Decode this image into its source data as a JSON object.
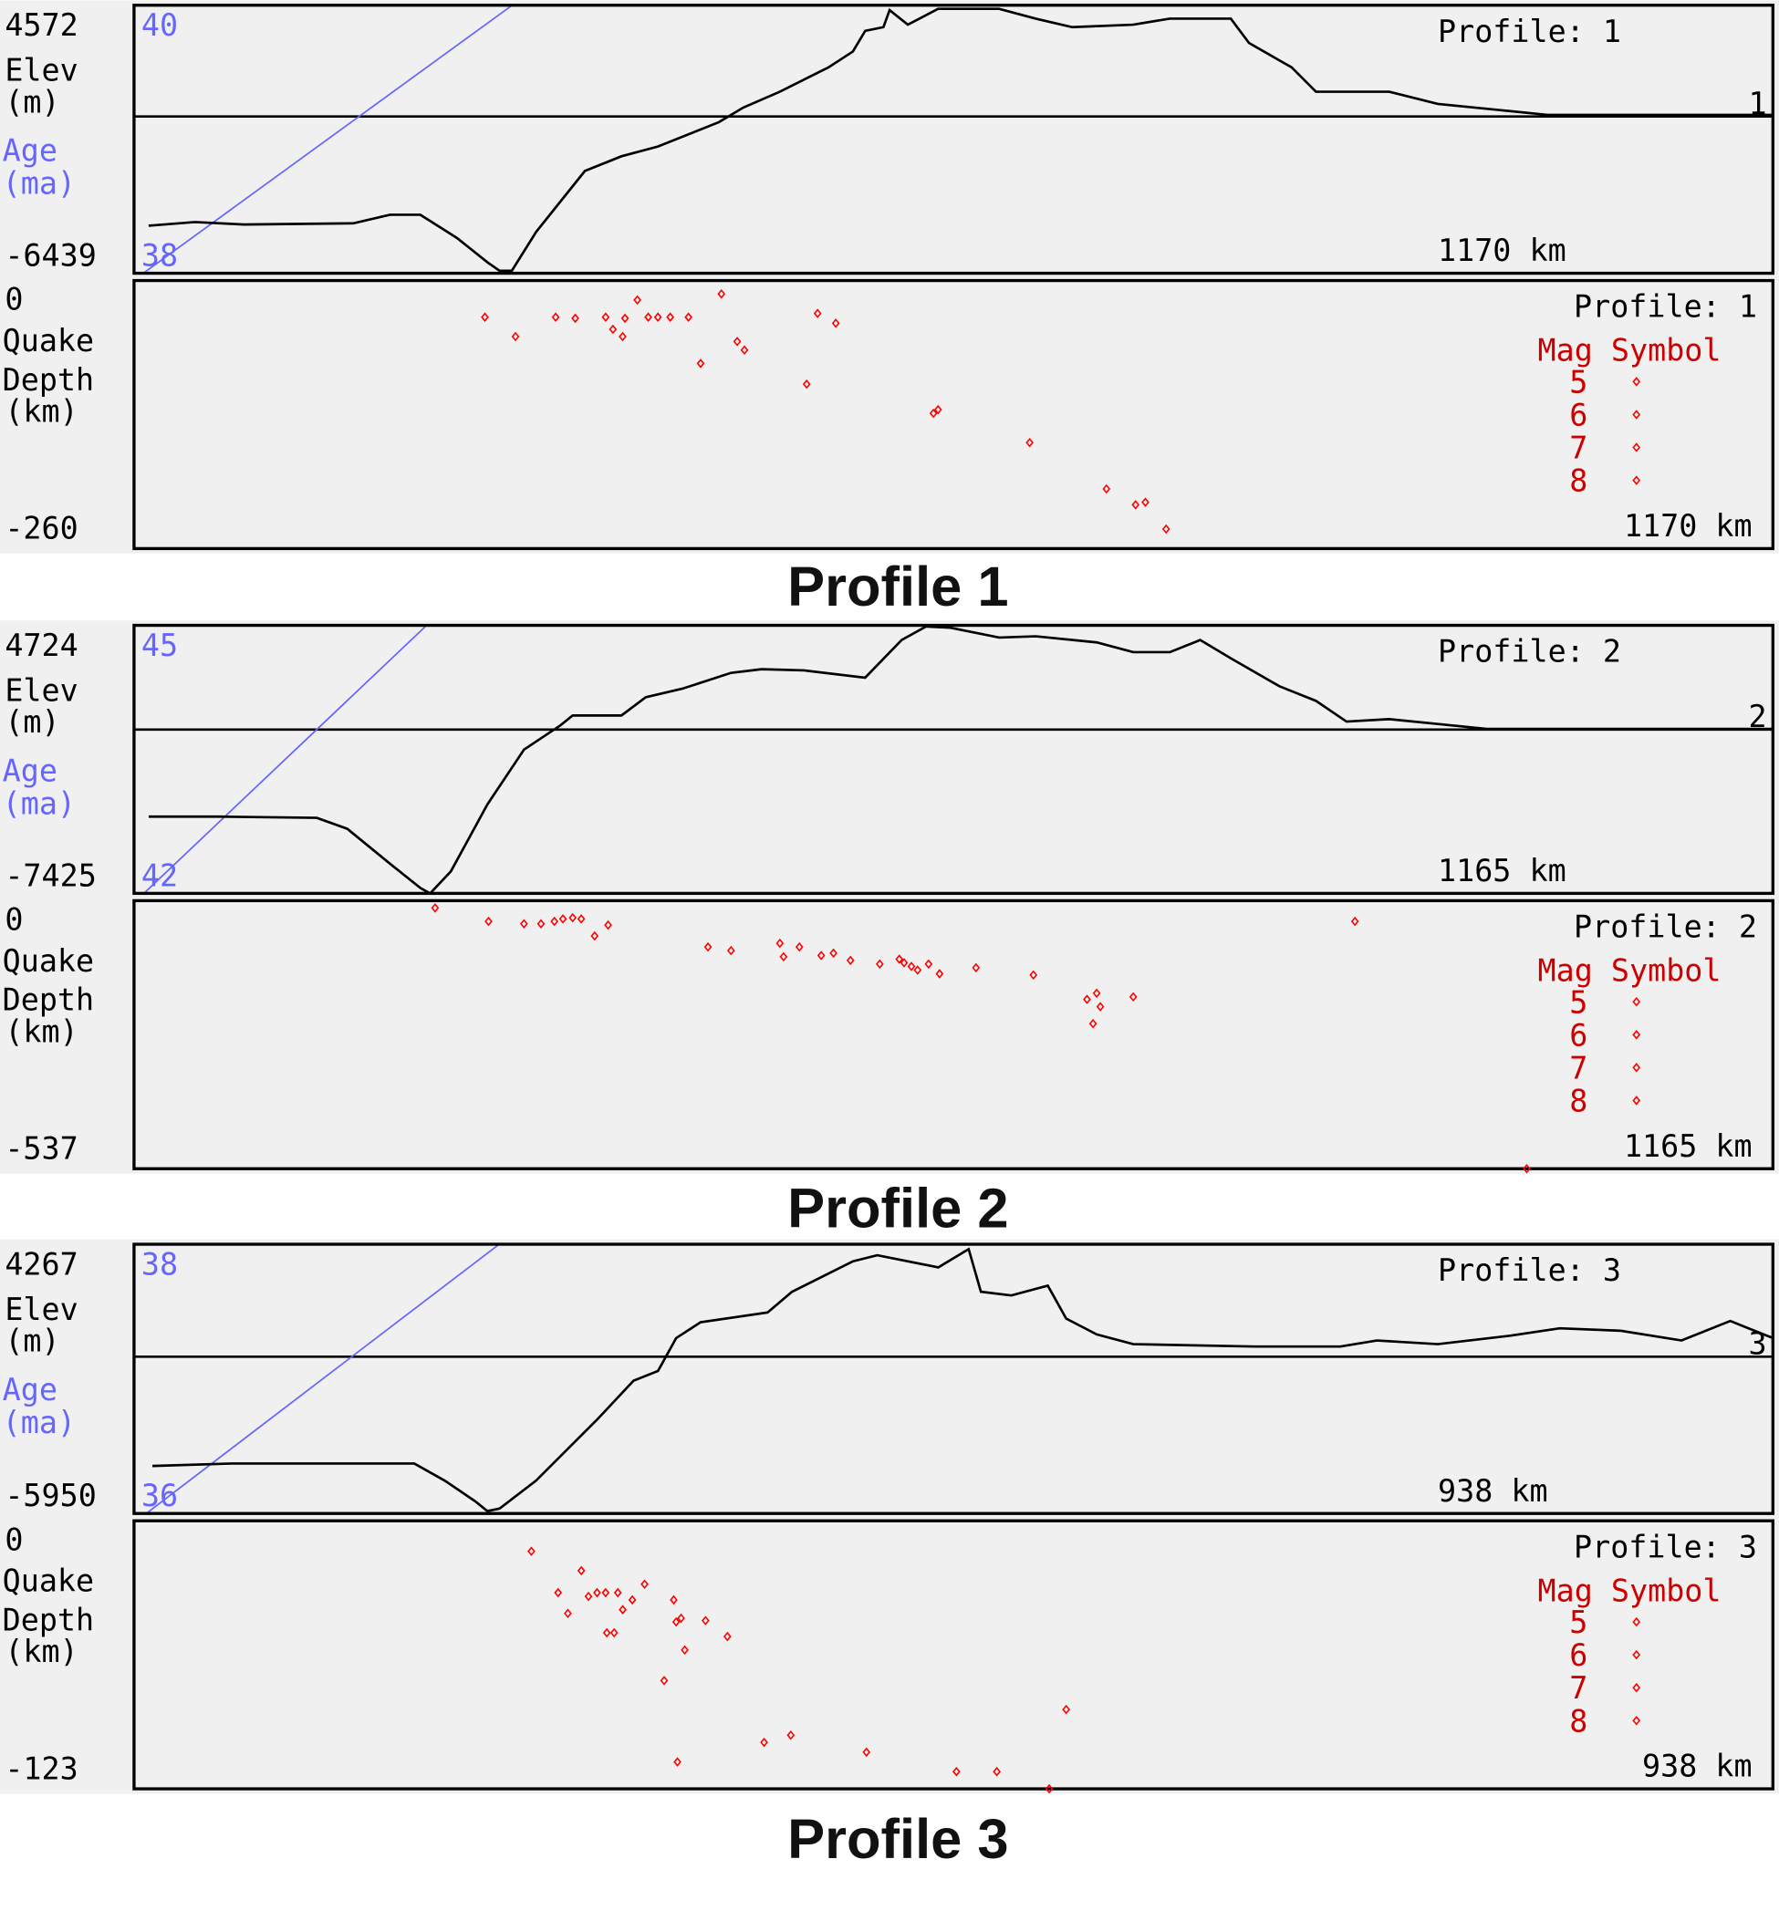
{
  "colors": {
    "background": "#f0f0f0",
    "elevation": "#000000",
    "age": "#6666ff",
    "quake": "#ff0000",
    "legend": "#cc0000"
  },
  "chart_data": [
    {
      "type": "line+scatter",
      "title": "Profile 1",
      "profile_label": "Profile: 1",
      "profile_number": "1",
      "distance_label": "1170 km",
      "distance_km": 1170,
      "elevation": {
        "ylabel": [
          "Elev",
          "(m)"
        ],
        "ylim": [
          -6439,
          4572
        ],
        "tick_labels": [
          "4572",
          "-6439"
        ],
        "points": [
          [
            10.4,
            -4487
          ],
          [
            43.5,
            -4337
          ],
          [
            78.3,
            -4437
          ],
          [
            156.6,
            -4387
          ],
          [
            182.7,
            -4037
          ],
          [
            204.4,
            -4037
          ],
          [
            230.5,
            -4988
          ],
          [
            252.3,
            -5989
          ],
          [
            261,
            -6339
          ],
          [
            269.7,
            -6339
          ],
          [
            287.1,
            -4737
          ],
          [
            321.9,
            -2235
          ],
          [
            348,
            -1634
          ],
          [
            374,
            -1234
          ],
          [
            417.5,
            -233
          ],
          [
            435,
            368
          ],
          [
            461,
            1018
          ],
          [
            478.4,
            1519
          ],
          [
            495.8,
            2019
          ],
          [
            513.2,
            2670
          ],
          [
            522,
            3521
          ],
          [
            535,
            3671
          ],
          [
            539.4,
            4372
          ],
          [
            552.4,
            3771
          ],
          [
            574,
            4422
          ],
          [
            617.6,
            4422
          ],
          [
            643.7,
            4021
          ],
          [
            669.8,
            3671
          ],
          [
            713.3,
            3771
          ],
          [
            739.4,
            4021
          ],
          [
            783,
            4021
          ],
          [
            796,
            3020
          ],
          [
            826.4,
            2019
          ],
          [
            843.8,
            1018
          ],
          [
            896,
            1018
          ],
          [
            930.8,
            518
          ],
          [
            974.3,
            268
          ],
          [
            1009,
            68
          ],
          [
            1170,
            68
          ]
        ]
      },
      "age": {
        "ylabel": [
          "Age",
          "(ma)"
        ],
        "ylim": [
          38,
          40
        ],
        "tick_labels": [
          "40",
          "38"
        ],
        "points": [
          [
            0,
            37.95
          ],
          [
            270,
            40
          ]
        ]
      },
      "quakes": {
        "ylabel": [
          "Quake",
          "Depth",
          "(km)"
        ],
        "ylim": [
          -260,
          0
        ],
        "tick_labels": [
          "0",
          "-260"
        ],
        "points": [
          [
            250.5,
            -35.5
          ],
          [
            272.3,
            -54.4
          ],
          [
            301,
            -35.5
          ],
          [
            315,
            -36.6
          ],
          [
            336.7,
            -35.5
          ],
          [
            341.9,
            -47.3
          ],
          [
            348.8,
            -54.4
          ],
          [
            350.5,
            -36.6
          ],
          [
            359.3,
            -18.9
          ],
          [
            367.1,
            -35.5
          ],
          [
            374,
            -35.5
          ],
          [
            382.8,
            -35.5
          ],
          [
            395.8,
            -35.5
          ],
          [
            404.5,
            -80.4
          ],
          [
            419.3,
            -13
          ],
          [
            430.6,
            -59.1
          ],
          [
            435.8,
            -67.4
          ],
          [
            480.2,
            -100.5
          ],
          [
            488,
            -31.9
          ],
          [
            501,
            -41.4
          ],
          [
            570.7,
            -128.8
          ],
          [
            574,
            -125.3
          ],
          [
            639.4,
            -157.2
          ],
          [
            694.2,
            -202.1
          ],
          [
            715,
            -217.5
          ],
          [
            722,
            -215.1
          ],
          [
            736.8,
            -241.1
          ]
        ]
      },
      "legend": {
        "title": "Mag Symbol",
        "mags": [
          "5",
          "6",
          "7",
          "8"
        ]
      }
    },
    {
      "type": "line+scatter",
      "title": "Profile 2",
      "profile_label": "Profile: 2",
      "profile_number": "2",
      "distance_label": "1165 km",
      "distance_km": 1165,
      "elevation": {
        "ylabel": [
          "Elev",
          "(m)"
        ],
        "ylim": [
          -7425,
          4724
        ],
        "tick_labels": [
          "4724",
          "-7425"
        ],
        "points": [
          [
            10.4,
            -3946
          ],
          [
            60.6,
            -3946
          ],
          [
            129.9,
            -4001
          ],
          [
            151.6,
            -4498
          ],
          [
            181.9,
            -6078
          ],
          [
            203.6,
            -7183
          ],
          [
            210.5,
            -7425
          ],
          [
            225.2,
            -6430
          ],
          [
            251.2,
            -3393
          ],
          [
            277.2,
            -909
          ],
          [
            303.2,
            196
          ],
          [
            311.8,
            638
          ],
          [
            346.5,
            638
          ],
          [
            363.8,
            1466
          ],
          [
            389.8,
            1853
          ],
          [
            424.4,
            2570
          ],
          [
            446.1,
            2736
          ],
          [
            476.4,
            2681
          ],
          [
            519.7,
            2350
          ],
          [
            545.7,
            4061
          ],
          [
            563,
            4669
          ],
          [
            580.4,
            4614
          ],
          [
            615,
            4172
          ],
          [
            641,
            4227
          ],
          [
            684.3,
            3951
          ],
          [
            710.3,
            3509
          ],
          [
            736.3,
            3509
          ],
          [
            757.9,
            4061
          ],
          [
            779.6,
            3233
          ],
          [
            814.2,
            1963
          ],
          [
            840.2,
            1300
          ],
          [
            861.9,
            362
          ],
          [
            892.2,
            472
          ],
          [
            926.8,
            251
          ],
          [
            961.5,
            30
          ],
          [
            1165,
            30
          ]
        ]
      },
      "age": {
        "ylabel": [
          "Age",
          "(ma)"
        ],
        "ylim": [
          42,
          45
        ],
        "tick_labels": [
          "45",
          "42"
        ],
        "points": [
          [
            7,
            42
          ],
          [
            208,
            45
          ]
        ]
      },
      "quakes": {
        "ylabel": [
          "Quake",
          "Depth",
          "(km)"
        ],
        "ylim": [
          -537,
          0
        ],
        "tick_labels": [
          "0",
          "-537"
        ],
        "points": [
          [
            214,
            -14.6
          ],
          [
            252,
            -41.5
          ],
          [
            277.2,
            -46.4
          ],
          [
            289.3,
            -46.4
          ],
          [
            298.8,
            -41.5
          ],
          [
            304.9,
            -36.6
          ],
          [
            311.8,
            -34.2
          ],
          [
            317.9,
            -36.6
          ],
          [
            327.4,
            -70.8
          ],
          [
            337,
            -48.8
          ],
          [
            408,
            -92.8
          ],
          [
            424.4,
            -100.1
          ],
          [
            459.1,
            -85.4
          ],
          [
            461.7,
            -112.3
          ],
          [
            473,
            -92.8
          ],
          [
            488.5,
            -109.8
          ],
          [
            497.2,
            -105
          ],
          [
            509.3,
            -119.6
          ],
          [
            530.1,
            -126.9
          ],
          [
            544,
            -117.2
          ],
          [
            547.4,
            -124.5
          ],
          [
            552.6,
            -131.8
          ],
          [
            557,
            -139.1
          ],
          [
            564.8,
            -126.9
          ],
          [
            572.6,
            -146.5
          ],
          [
            598.5,
            -134.3
          ],
          [
            639.3,
            -148.9
          ],
          [
            677.4,
            -197.7
          ],
          [
            684.3,
            -185.5
          ],
          [
            686.9,
            -212.4
          ],
          [
            681.7,
            -246.5
          ],
          [
            710.3,
            -192.8
          ],
          [
            867.9,
            -41.5
          ],
          [
            990,
            -537
          ]
        ]
      },
      "legend": {
        "title": "Mag Symbol",
        "mags": [
          "5",
          "6",
          "7",
          "8"
        ]
      }
    },
    {
      "type": "line+scatter",
      "title": "Profile 3",
      "profile_label": "Profile: 3",
      "profile_number": "3",
      "distance_label": "938 km",
      "distance_km": 938,
      "elevation": {
        "ylabel": [
          "Elev",
          "(m)"
        ],
        "ylim": [
          -5950,
          4267
        ],
        "tick_labels": [
          "4267",
          "-5950"
        ],
        "points": [
          [
            10.5,
            -4147
          ],
          [
            55.8,
            -4054
          ],
          [
            160.4,
            -4054
          ],
          [
            177.8,
            -4702
          ],
          [
            195.3,
            -5488
          ],
          [
            202.2,
            -5857
          ],
          [
            209.2,
            -5765
          ],
          [
            230.1,
            -4702
          ],
          [
            265,
            -2390
          ],
          [
            285.9,
            -911
          ],
          [
            299.9,
            -541
          ],
          [
            310.3,
            707
          ],
          [
            324.3,
            1308
          ],
          [
            362.6,
            1678
          ],
          [
            376.6,
            2464
          ],
          [
            411.5,
            3620
          ],
          [
            425.4,
            3851
          ],
          [
            460.3,
            3389
          ],
          [
            477.7,
            4082
          ],
          [
            484.7,
            2464
          ],
          [
            502.1,
            2325
          ],
          [
            523,
            2695
          ],
          [
            533.5,
            1447
          ],
          [
            551,
            846
          ],
          [
            571.9,
            476
          ],
          [
            641.6,
            384
          ],
          [
            690.4,
            384
          ],
          [
            711.3,
            615
          ],
          [
            746.2,
            476
          ],
          [
            788,
            800
          ],
          [
            816,
            1077
          ],
          [
            850.8,
            985
          ],
          [
            885.7,
            615
          ],
          [
            913.6,
            1355
          ],
          [
            927.5,
            985
          ],
          [
            938,
            707
          ]
        ]
      },
      "age": {
        "ylabel": [
          "Age",
          "(ma)"
        ],
        "ylim": [
          36,
          38
        ],
        "tick_labels": [
          "38",
          "36"
        ],
        "points": [
          [
            7,
            36
          ],
          [
            209,
            38
          ]
        ]
      },
      "quakes": {
        "ylabel": [
          "Quake",
          "Depth",
          "(km)"
        ],
        "ylim": [
          -123,
          0
        ],
        "tick_labels": [
          "0",
          "-123"
        ],
        "points": [
          [
            227.4,
            -14
          ],
          [
            256,
            -22.9
          ],
          [
            242.7,
            -33
          ],
          [
            248.3,
            -42.5
          ],
          [
            260.1,
            -34.7
          ],
          [
            265,
            -33
          ],
          [
            269.9,
            -33
          ],
          [
            276.9,
            -33
          ],
          [
            279.7,
            -40.8
          ],
          [
            285.2,
            -36.3
          ],
          [
            292.2,
            -29.1
          ],
          [
            270.6,
            -51.4
          ],
          [
            274.8,
            -51.4
          ],
          [
            308.9,
            -36.3
          ],
          [
            310.3,
            -46.4
          ],
          [
            313.1,
            -44.7
          ],
          [
            327.1,
            -45.8
          ],
          [
            315.2,
            -59.3
          ],
          [
            339.6,
            -53.1
          ],
          [
            303.4,
            -73.3
          ],
          [
            533.5,
            -86.6
          ],
          [
            360.6,
            -101.7
          ],
          [
            375.9,
            -98.4
          ],
          [
            311,
            -110.7
          ],
          [
            419.2,
            -106.2
          ],
          [
            470.7,
            -115.1
          ],
          [
            493.8,
            -115.1
          ],
          [
            523.8,
            -123
          ]
        ]
      },
      "legend": {
        "title": "Mag Symbol",
        "mags": [
          "5",
          "6",
          "7",
          "8"
        ]
      }
    }
  ]
}
